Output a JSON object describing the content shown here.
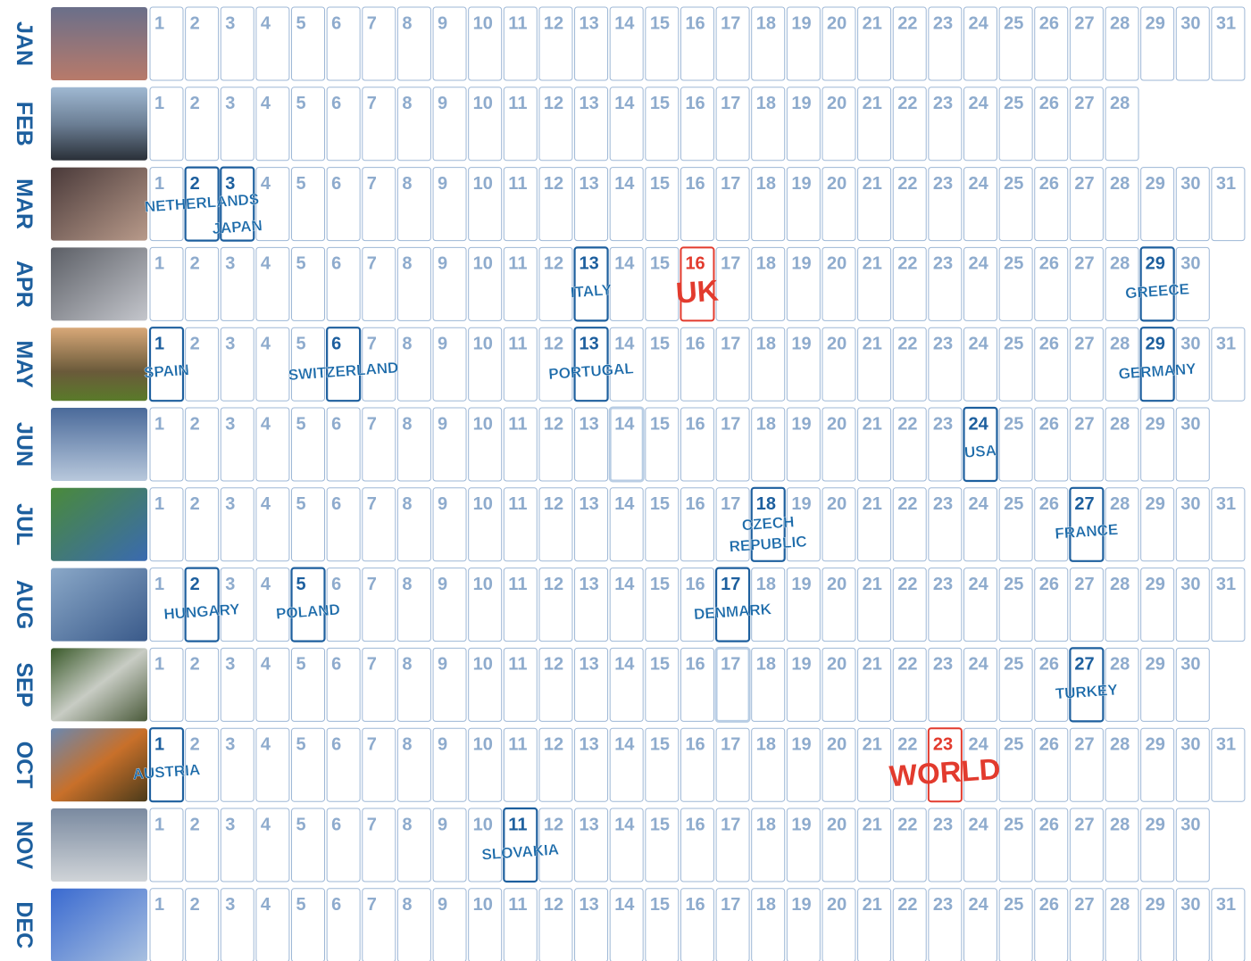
{
  "months": [
    {
      "name": "JAN",
      "days": [
        1,
        2,
        3,
        4,
        5,
        6,
        7,
        8,
        9,
        10,
        11,
        12,
        13,
        14,
        15,
        16,
        17,
        18,
        19,
        20,
        21,
        22,
        23,
        24,
        25,
        26,
        27,
        28,
        29,
        30,
        31
      ],
      "events": []
    },
    {
      "name": "FEB",
      "days": [
        1,
        2,
        3,
        4,
        5,
        6,
        7,
        8,
        9,
        10,
        11,
        12,
        13,
        14,
        15,
        16,
        17,
        18,
        19,
        20,
        21,
        22,
        23,
        24,
        25,
        26,
        27,
        28
      ],
      "events": []
    },
    {
      "name": "MAR",
      "days": [
        1,
        2,
        3,
        4,
        5,
        6,
        7,
        8,
        9,
        10,
        11,
        12,
        13,
        14,
        15,
        16,
        17,
        18,
        19,
        20,
        21,
        22,
        23,
        24,
        25,
        26,
        27,
        28,
        29,
        30,
        31
      ],
      "events": [
        {
          "day": 2,
          "label": [
            "NETHERLANDS"
          ],
          "style": "blue"
        },
        {
          "day": 3,
          "label": [
            "JAPAN"
          ],
          "style": "blue"
        }
      ]
    },
    {
      "name": "APR",
      "days": [
        1,
        2,
        3,
        4,
        5,
        6,
        7,
        8,
        9,
        10,
        11,
        12,
        13,
        14,
        15,
        16,
        17,
        18,
        19,
        20,
        21,
        22,
        23,
        24,
        25,
        26,
        27,
        28,
        29,
        30
      ],
      "events": [
        {
          "day": 13,
          "label": [
            "ITALY"
          ],
          "style": "blue"
        },
        {
          "day": 16,
          "label": [
            "UK"
          ],
          "style": "red"
        },
        {
          "day": 29,
          "label": [
            "GREECE"
          ],
          "style": "blue"
        }
      ]
    },
    {
      "name": "MAY",
      "days": [
        1,
        2,
        3,
        4,
        5,
        6,
        7,
        8,
        9,
        10,
        11,
        12,
        13,
        14,
        15,
        16,
        17,
        18,
        19,
        20,
        21,
        22,
        23,
        24,
        25,
        26,
        27,
        28,
        29,
        30,
        31
      ],
      "events": [
        {
          "day": 1,
          "label": [
            "SPAIN"
          ],
          "style": "blue"
        },
        {
          "day": 6,
          "label": [
            "SWITZERLAND"
          ],
          "style": "blue"
        },
        {
          "day": 13,
          "label": [
            "PORTUGAL"
          ],
          "style": "blue"
        },
        {
          "day": 29,
          "label": [
            "GERMANY"
          ],
          "style": "blue"
        }
      ]
    },
    {
      "name": "JUN",
      "days": [
        1,
        2,
        3,
        4,
        5,
        6,
        7,
        8,
        9,
        10,
        11,
        12,
        13,
        14,
        15,
        16,
        17,
        18,
        19,
        20,
        21,
        22,
        23,
        24,
        25,
        26,
        27,
        28,
        29,
        30
      ],
      "events": [
        {
          "day": 14,
          "label": [],
          "style": "faint"
        },
        {
          "day": 24,
          "label": [
            "USA"
          ],
          "style": "blue"
        }
      ]
    },
    {
      "name": "JUL",
      "days": [
        1,
        2,
        3,
        4,
        5,
        6,
        7,
        8,
        9,
        10,
        11,
        12,
        13,
        14,
        15,
        16,
        17,
        18,
        19,
        20,
        21,
        22,
        23,
        24,
        25,
        26,
        27,
        28,
        29,
        30,
        31
      ],
      "events": [
        {
          "day": 18,
          "label": [
            "CZECH",
            "REPUBLIC"
          ],
          "style": "blue"
        },
        {
          "day": 27,
          "label": [
            "FRANCE"
          ],
          "style": "blue"
        }
      ]
    },
    {
      "name": "AUG",
      "days": [
        1,
        2,
        3,
        4,
        5,
        6,
        7,
        8,
        9,
        10,
        11,
        12,
        13,
        14,
        15,
        16,
        17,
        18,
        19,
        20,
        21,
        22,
        23,
        24,
        25,
        26,
        27,
        28,
        29,
        30,
        31
      ],
      "events": [
        {
          "day": 2,
          "label": [
            "HUNGARY"
          ],
          "style": "blue"
        },
        {
          "day": 5,
          "label": [
            "POLAND"
          ],
          "style": "blue"
        },
        {
          "day": 17,
          "label": [
            "DENMARK"
          ],
          "style": "blue"
        }
      ]
    },
    {
      "name": "SEP",
      "days": [
        1,
        2,
        3,
        4,
        5,
        6,
        7,
        8,
        9,
        10,
        11,
        12,
        13,
        14,
        15,
        16,
        17,
        18,
        19,
        20,
        21,
        22,
        23,
        24,
        25,
        26,
        27,
        28,
        29,
        30
      ],
      "events": [
        {
          "day": 17,
          "label": [],
          "style": "faint"
        },
        {
          "day": 27,
          "label": [
            "TURKEY"
          ],
          "style": "blue"
        }
      ]
    },
    {
      "name": "OCT",
      "days": [
        1,
        2,
        3,
        4,
        5,
        6,
        7,
        8,
        9,
        10,
        11,
        12,
        13,
        14,
        15,
        16,
        17,
        18,
        19,
        20,
        21,
        22,
        23,
        24,
        25,
        26,
        27,
        28,
        29,
        30,
        31
      ],
      "events": [
        {
          "day": 1,
          "label": [
            "AUSTRIA"
          ],
          "style": "blue"
        },
        {
          "day": 23,
          "label": [
            "WORLD"
          ],
          "style": "red"
        }
      ]
    },
    {
      "name": "NOV",
      "days": [
        1,
        2,
        3,
        4,
        5,
        6,
        7,
        8,
        9,
        10,
        11,
        12,
        13,
        14,
        15,
        16,
        17,
        18,
        19,
        20,
        21,
        22,
        23,
        24,
        25,
        26,
        27,
        28,
        29,
        30
      ],
      "events": [
        {
          "day": 11,
          "label": [
            "SLOVAKIA"
          ],
          "style": "blue"
        }
      ]
    },
    {
      "name": "DEC",
      "days": [
        1,
        2,
        3,
        4,
        5,
        6,
        7,
        8,
        9,
        10,
        11,
        12,
        13,
        14,
        15,
        16,
        17,
        18,
        19,
        20,
        21,
        22,
        23,
        24,
        25,
        26,
        27,
        28,
        29,
        30,
        31
      ],
      "events": []
    }
  ]
}
